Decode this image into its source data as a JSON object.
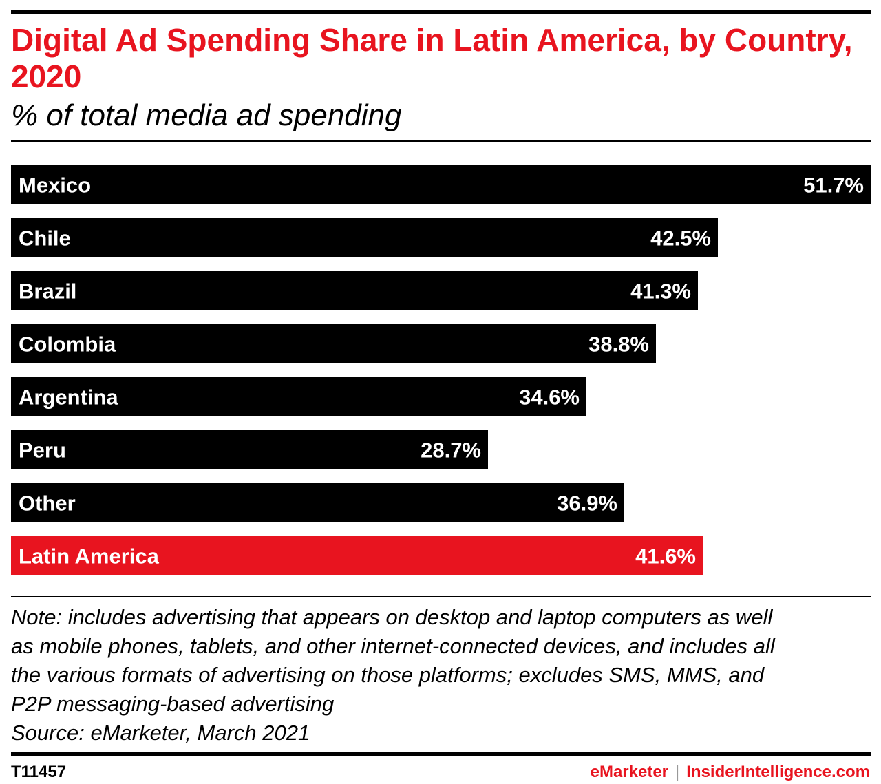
{
  "header": {
    "title": "Digital Ad Spending Share in Latin America, by Country, 2020",
    "subtitle": "% of total media ad spending"
  },
  "colors": {
    "accent": "#e8141f",
    "bar": "#000000",
    "bar_label": "#ffffff"
  },
  "chart_data": {
    "type": "bar",
    "orientation": "horizontal",
    "title": "Digital Ad Spending Share in Latin America, by Country, 2020",
    "subtitle": "% of total media ad spending",
    "categories": [
      "Mexico",
      "Chile",
      "Brazil",
      "Colombia",
      "Argentina",
      "Peru",
      "Other",
      "Latin America"
    ],
    "values": [
      51.7,
      42.5,
      41.3,
      38.8,
      34.6,
      28.7,
      36.9,
      41.6
    ],
    "value_labels": [
      "51.7%",
      "42.5%",
      "41.3%",
      "38.8%",
      "34.6%",
      "28.7%",
      "36.9%",
      "41.6%"
    ],
    "highlight": "Latin America",
    "xlim": [
      0,
      51.7
    ],
    "grid": false,
    "legend": "none"
  },
  "footer": {
    "note_lines": [
      "Note: includes advertising that appears on desktop and laptop computers as well",
      "as mobile phones, tablets, and other internet-connected devices, and includes all",
      "the various formats of advertising on those platforms; excludes SMS, MMS, and",
      "P2P messaging-based advertising"
    ],
    "source": "Source: eMarketer, March 2021",
    "chart_id": "T11457",
    "brand_left": "eMarketer",
    "brand_sep": "|",
    "brand_right": "InsiderIntelligence.com"
  }
}
